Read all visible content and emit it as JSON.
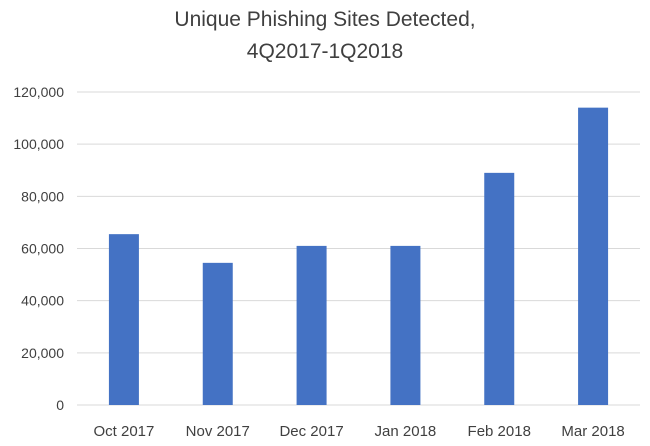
{
  "chart_data": {
    "type": "bar",
    "title_lines": [
      "Unique Phishing Sites Detected,",
      "4Q2017-1Q2018"
    ],
    "categories": [
      "Oct 2017",
      "Nov 2017",
      "Dec 2017",
      "Jan 2018",
      "Feb 2018",
      "Mar 2018"
    ],
    "values": [
      65500,
      54500,
      61000,
      61000,
      89000,
      114000
    ],
    "ylim": [
      0,
      120000
    ],
    "yticks": [
      0,
      20000,
      40000,
      60000,
      80000,
      100000,
      120000
    ],
    "ytick_labels": [
      "0",
      "20,000",
      "40,000",
      "60,000",
      "80,000",
      "100,000",
      "120,000"
    ],
    "grid": true,
    "bar_color": "#4472c4",
    "grid_color": "#d9d9d9"
  }
}
